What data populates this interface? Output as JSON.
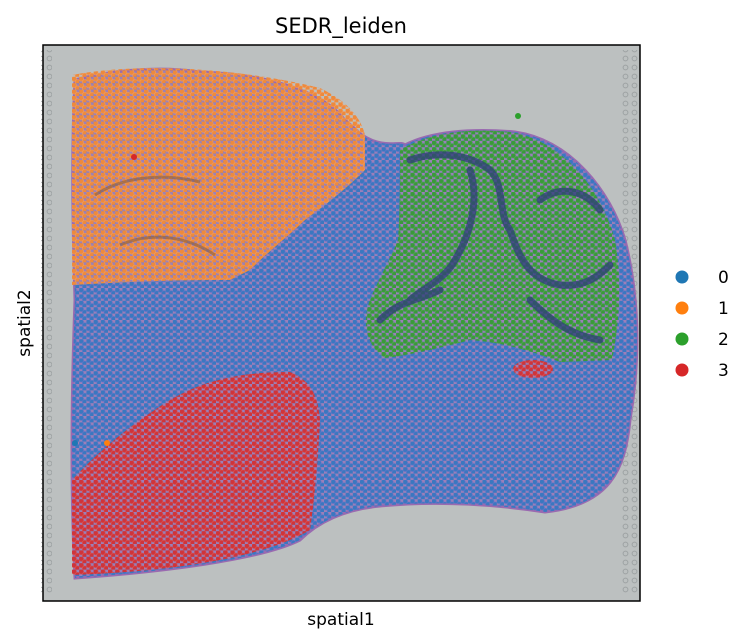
{
  "chart_data": {
    "type": "scatter",
    "title": "SEDR_leiden",
    "xlabel": "spatial1",
    "ylabel": "spatial2",
    "grid": false,
    "legend_position": "right",
    "background": "tissue-image",
    "series": [
      {
        "name": "0",
        "color": "#1f77b4"
      },
      {
        "name": "1",
        "color": "#ff7f0e"
      },
      {
        "name": "2",
        "color": "#2ca02c"
      },
      {
        "name": "3",
        "color": "#d62728"
      }
    ]
  }
}
